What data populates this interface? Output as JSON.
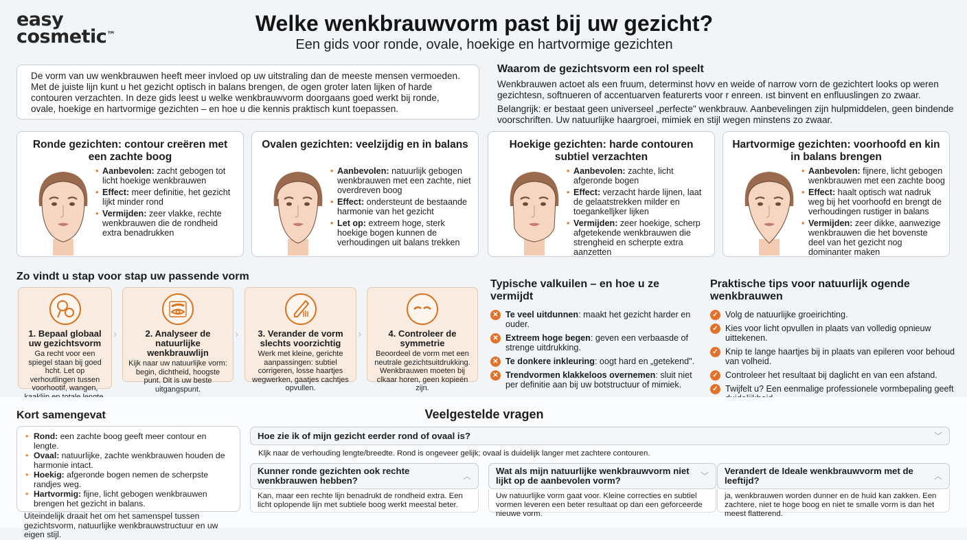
{
  "brand": {
    "line1": "easy",
    "line2": "cosmetic",
    "tm": "™"
  },
  "header": {
    "title": "Welke wenkbrauwvorm past bij uw gezicht?",
    "subtitle": "Een gids voor ronde, ovale, hoekige en hartvormige gezichten"
  },
  "intro": "De vorm van uw wenkbrauwen heeft meer invloed op uw uitstraling dan de meeste mensen vermoeden. Met de juiste lijn kunt u het gezicht optisch in balans brengen, de ogen groter laten lijken of harde contouren verzachten. In deze gids leest u welke wenkbrauwvorm doorgaans goed werkt bij ronde, ovale, hoekige en hartvormige gezichten – en hoe u die kennis praktisch kunt toepassen.",
  "why": {
    "title": "Waarom de gezichtsvorm een rol speelt",
    "p1": "Wenkbrauwen actoet als een fruum, determinst hovv en weide of narrow vorn de gezichtert looks op weren gezichtesn, softnueren of accentuarven featurerts voor r enreen. ıst binvent en enfluuslingen zo zwaar.",
    "p2": "Belangrijk: er bestaat geen universeel „perfecte\" wenkbrauw. Aanbevelingen zijn hulpmiddelen, geen bindende voorschriften. Uw natuurlijke haargroei, mimiek en stijl wegen minstens zo zwaar."
  },
  "faces": [
    {
      "title": "Ronde gezichten: contour creëren met een zachte boog",
      "shape": "round",
      "items": [
        {
          "label": "Aanbevolen:",
          "text": " zacht gebogen tot licht hoekige wenkbrauwen"
        },
        {
          "label": "Effect:",
          "text": " meer definitie, het gezicht lijkt minder rond"
        },
        {
          "label": "Vermijden:",
          "text": " zeer vlakke, rechte wenkbrauwen die de rondheid extra benadrukken"
        }
      ]
    },
    {
      "title": "Ovalen gezichten: veelzijdig en in balans",
      "shape": "oval",
      "items": [
        {
          "label": "Aanbevolen:",
          "text": " natuurlijk gebogen wenkbrauwen met een zachte, niet overdreven boog"
        },
        {
          "label": "Effect:",
          "text": " ondersteunt de bestaande harmonie van het gezicht"
        },
        {
          "label": "Let op:",
          "text": " extreem hoge, sterk hoekige bogen kunnen de verhoudingen uit balans trekken"
        }
      ]
    },
    {
      "title": "Hoekige gezichten: harde contouren subtiel verzachten",
      "shape": "square",
      "items": [
        {
          "label": "Aanbevolen:",
          "text": " zachte, licht afgeronde bogen"
        },
        {
          "label": "Effect:",
          "text": " verzacht harde lijnen, laat de gelaatstrekken milder en toegankelljker lijken"
        },
        {
          "label": "Vermijden:",
          "text": " zeer hoekige, scherp afgetekende wenkbrauwen die strengheid en scherpte extra aanzetten"
        }
      ]
    },
    {
      "title": "Hartvormige gezichten: voorhoofd en kin in balans brengen",
      "shape": "heart",
      "items": [
        {
          "label": "Aanbevolen:",
          "text": " fijnere, licht gebogen wenkbrauwen met een zachte boog"
        },
        {
          "label": "Effect:",
          "text": " haalt optisch wat nadruk weg bij het voorhoofd en brengt de verhoudingen rustiger in balans"
        },
        {
          "label": "Vermijden:",
          "text": " zeer dikke, aanwezige wenkbrauwen die het bovenste deel van het gezicht nog dominanter maken"
        }
      ]
    }
  ],
  "steps": {
    "title": "Zo vindt u stap voor stap uw passende vorm",
    "items": [
      {
        "icon": "mirror-icon",
        "title": "1. Bepaal globaal uw gezichtsvorm",
        "text": "Ga recht voor een spiegel staan bij goed hcht. Let op verhoutlingen tussen voorhootif, wangen, kaaklijn en totale lengte."
      },
      {
        "icon": "eye-brow-icon",
        "title": "2. Analyseer de natuurlijke wenkbrauwlijn",
        "text": "Kijk naar uw natuurlijke vorm: begin, dichtheid, hoogste punt. Dit is uw beste uitgangspunt."
      },
      {
        "icon": "pencil-icon",
        "title": "3. Verander de vorm slechts voorzichtig",
        "text": "Werk met kleine, gerichte aanpassingen: subtiel corrigeren, losse haartjes wegwerken, gaatjes cachtjes opvullen."
      },
      {
        "icon": "brows-symmetry-icon",
        "title": "4. Controleer de symmetrie",
        "text": "Beoordeel de vorm met een neutrale gezichtsuitdrukking. Wenkbrauwen moeten bij clkaar horen, geen kopieën zijn."
      }
    ]
  },
  "pitfalls": {
    "title": "Typische valkuilen – en hoe u ze vermijdt",
    "items": [
      {
        "label": "Te veel uitdunnen",
        "text": ": maakt het gezicht harder en ouder."
      },
      {
        "label": "Extreem hoge begen",
        "text": ": geven een verbaasde of strenge uitdrukking."
      },
      {
        "label": "Te donkere inkleuring",
        "text": ": oogt hard en „getekend\"."
      },
      {
        "label": "Trendvormen klakkeloos overnemen",
        "text": ": sluit niet per definitie aan bij uw botstructuur of mimiek."
      }
    ]
  },
  "tips": {
    "title": "Praktische tips voor natuurlijk ogende wenkbrauwen",
    "items": [
      {
        "label": "",
        "text": "Volg de natuurlijke groeirichting."
      },
      {
        "label": "",
        "text": "Kies voor licht opvullen in plaats van volledig opnieuw uittekenen."
      },
      {
        "label": "",
        "text": "Knip te lange haartjes bij in plaats van epileren voor behoud van volheid."
      },
      {
        "label": "",
        "text": "Controleer het resultaat bij daglicht en van een afstand."
      },
      {
        "label": "",
        "text": "Twijfelt u? Een eenmalige professionele vormbepaling geeft duidelijkheid."
      }
    ]
  },
  "summary": {
    "title": "Kort samengevat",
    "items": [
      {
        "label": "Rond:",
        "text": " een zachte boog geeft meer contour en lengte."
      },
      {
        "label": "Ovaal:",
        "text": " natuurlijke, zachte wenkbrauwen houden de harmonie intact."
      },
      {
        "label": "Hoekig:",
        "text": " afgeronde bogen nemen de scherpste randjes weg."
      },
      {
        "label": "Hartvormig:",
        "text": " fijne, licht gebogen wenkbrauwen brengen het gezicht in balans."
      }
    ],
    "closing": "Uiteindelijk draait het om het samenspel tussen gezichtsvorm, natuurlijke wenkbrauwstructuur en uw eigen stijl."
  },
  "faq": {
    "title": "Veelgestelde vragen",
    "items": [
      {
        "q": "Hoe zie ik of mijn gezicht eerder rond of ovaal is?",
        "a": "Kljk naar de verhouding lengte/breedte. Rond is ongeveer gelijk; ovaal is duidelijk langer met zachtere contouren.",
        "state": "collapsed"
      },
      {
        "q": "Kunner ronde gezichten ook rechte wenkbrauwen hebben?",
        "a": "Kan, maar een rechte lijn benadrukt de rondheid extra. Een licht oplopende lijn met subtiele boog werkt meestal beter.",
        "state": "expanded"
      },
      {
        "q": "Wat als mijn natuurlijke wenkbrauwvorm niet lijkt op de aanbevolen vorm?",
        "a": "Uw natuurlijke vorm gaat voor. Kleine correcties en subtiel vormen leveren een beter resultaat op dan een geforceerde nieuwe vorm.",
        "state": "collapsed"
      },
      {
        "q": "Verandert de Ideale wenkbrauwvorm met de leeftijd?",
        "a": "ja, wenkbrauwen worden dunner en de huid kan zakken. Een zachtere, niet te hoge boog en niet te smalle vorm is dan het meest flatterend.",
        "state": "expanded"
      }
    ]
  },
  "colors": {
    "accent": "#e07a2c",
    "step_bg": "#f9ebe0",
    "skin": "#f6d3bd",
    "hair": "#9a6a4e"
  }
}
